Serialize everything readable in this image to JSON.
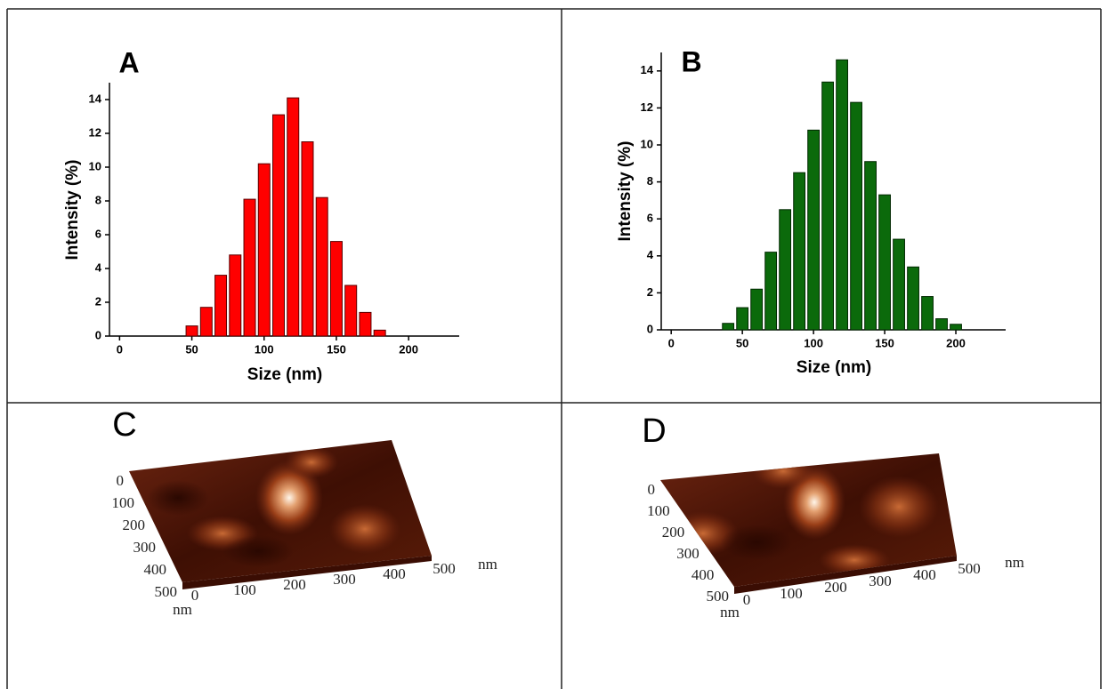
{
  "chart_data": [
    {
      "type": "bar",
      "panel_label": "A",
      "xlabel": "Size (nm)",
      "ylabel": "Intensity (%)",
      "color": "#ff0000",
      "edge_color": "#5a0000",
      "x": [
        50,
        60,
        70,
        80,
        90,
        100,
        110,
        120,
        130,
        140,
        150,
        160,
        170,
        180
      ],
      "values": [
        0.6,
        1.7,
        3.6,
        4.8,
        8.1,
        10.2,
        13.1,
        14.1,
        11.5,
        8.2,
        5.6,
        3.0,
        1.4,
        0.35
      ],
      "xlim": [
        -7,
        235
      ],
      "ylim": [
        0,
        15
      ],
      "xticks": [
        0,
        50,
        100,
        150,
        200
      ],
      "yticks": [
        0,
        2,
        4,
        6,
        8,
        10,
        12,
        14
      ]
    },
    {
      "type": "bar",
      "panel_label": "B",
      "xlabel": "Size (nm)",
      "ylabel": "Intensity (%)",
      "color": "#0b6a0b",
      "edge_color": "#002800",
      "x": [
        40,
        50,
        60,
        70,
        80,
        90,
        100,
        110,
        120,
        130,
        140,
        150,
        160,
        170,
        180,
        190,
        200
      ],
      "values": [
        0.35,
        1.2,
        2.2,
        4.2,
        6.5,
        8.5,
        10.8,
        13.4,
        14.6,
        12.3,
        9.1,
        7.3,
        4.9,
        3.4,
        1.8,
        0.6,
        0.3
      ],
      "xlim": [
        -7,
        235
      ],
      "ylim": [
        0,
        15
      ],
      "xticks": [
        0,
        50,
        100,
        150,
        200
      ],
      "yticks": [
        0,
        2,
        4,
        6,
        8,
        10,
        12,
        14
      ]
    },
    {
      "type": "surface",
      "panel_label": "C",
      "xlabel": "nm",
      "ylabel": "nm",
      "xlim": [
        0,
        500
      ],
      "ylim": [
        0,
        500
      ],
      "xticks": [
        0,
        100,
        200,
        300,
        400,
        500
      ],
      "yticks": [
        0,
        100,
        200,
        300,
        400,
        500
      ]
    },
    {
      "type": "surface",
      "panel_label": "D",
      "xlabel": "nm",
      "ylabel": "nm",
      "xlim": [
        0,
        500
      ],
      "ylim": [
        0,
        500
      ],
      "xticks": [
        0,
        100,
        200,
        300,
        400,
        500
      ],
      "yticks": [
        0,
        100,
        200,
        300,
        400,
        500
      ]
    }
  ]
}
